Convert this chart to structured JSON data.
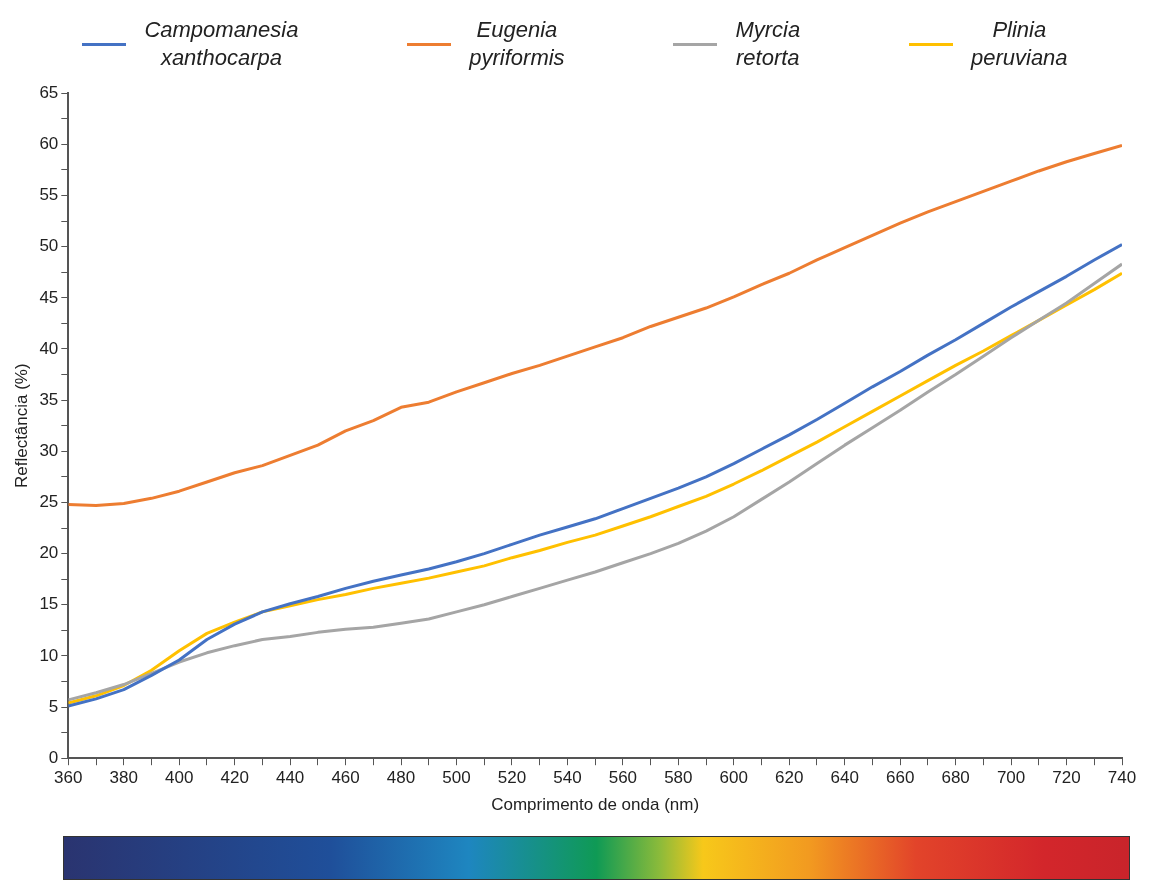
{
  "chart_data": {
    "type": "line",
    "xlabel": "Comprimento de onda (nm)",
    "ylabel": "Reflectância (%)",
    "x": [
      360,
      370,
      380,
      390,
      400,
      410,
      420,
      430,
      440,
      450,
      460,
      470,
      480,
      490,
      500,
      510,
      520,
      530,
      540,
      550,
      560,
      570,
      580,
      590,
      600,
      610,
      620,
      630,
      640,
      650,
      660,
      670,
      680,
      690,
      700,
      710,
      720,
      730,
      740
    ],
    "series": [
      {
        "name": "Campomanesia xanthocarpa",
        "color": "#4472c4",
        "values": [
          5.1,
          5.8,
          6.7,
          8.1,
          9.6,
          11.6,
          13.1,
          14.3,
          15.1,
          15.8,
          16.6,
          17.3,
          17.9,
          18.5,
          19.2,
          20.0,
          20.9,
          21.8,
          22.6,
          23.4,
          24.4,
          25.4,
          26.4,
          27.5,
          28.8,
          30.2,
          31.6,
          33.1,
          34.7,
          36.3,
          37.8,
          39.4,
          40.9,
          42.5,
          44.1,
          45.6,
          47.1,
          48.7,
          50.2
        ]
      },
      {
        "name": "Eugenia pyriformis",
        "color": "#ed7d31",
        "values": [
          24.8,
          24.7,
          24.9,
          25.4,
          26.1,
          27.0,
          27.9,
          28.6,
          29.6,
          30.6,
          32.0,
          33.0,
          34.3,
          34.8,
          35.8,
          36.7,
          37.6,
          38.4,
          39.3,
          40.2,
          41.1,
          42.2,
          43.1,
          44.0,
          45.1,
          46.3,
          47.4,
          48.7,
          49.9,
          51.1,
          52.3,
          53.4,
          54.4,
          55.4,
          56.4,
          57.4,
          58.3,
          59.1,
          59.9
        ]
      },
      {
        "name": "Myrcia retorta",
        "color": "#a5a5a5",
        "values": [
          5.7,
          6.4,
          7.2,
          8.3,
          9.4,
          10.3,
          11.0,
          11.6,
          11.9,
          12.3,
          12.6,
          12.8,
          13.2,
          13.6,
          14.3,
          15.0,
          15.8,
          16.6,
          17.4,
          18.2,
          19.1,
          20.0,
          21.0,
          22.2,
          23.6,
          25.3,
          27.0,
          28.8,
          30.6,
          32.3,
          34.0,
          35.8,
          37.5,
          39.3,
          41.1,
          42.8,
          44.5,
          46.4,
          48.3
        ]
      },
      {
        "name": "Plinia peruviana",
        "color": "#ffc000",
        "values": [
          5.4,
          6.1,
          7.1,
          8.6,
          10.5,
          12.2,
          13.3,
          14.3,
          14.9,
          15.5,
          16.0,
          16.6,
          17.1,
          17.6,
          18.2,
          18.8,
          19.6,
          20.3,
          21.1,
          21.8,
          22.7,
          23.6,
          24.6,
          25.6,
          26.8,
          28.1,
          29.5,
          30.9,
          32.4,
          33.9,
          35.4,
          36.9,
          38.4,
          39.8,
          41.3,
          42.8,
          44.3,
          45.8,
          47.4
        ]
      }
    ],
    "xlim": [
      360,
      740
    ],
    "xticks": [
      360,
      {
        "value": 370,
        "label": null
      },
      380,
      {
        "value": 390,
        "label": null
      },
      400,
      {
        "value": 410,
        "label": null
      },
      420,
      {
        "value": 430,
        "label": null
      },
      440,
      {
        "value": 450,
        "label": null
      },
      460,
      {
        "value": 470,
        "label": null
      },
      480,
      {
        "value": 490,
        "label": null
      },
      500,
      {
        "value": 510,
        "label": null
      },
      520,
      {
        "value": 530,
        "label": null
      },
      540,
      {
        "value": 550,
        "label": null
      },
      560,
      {
        "value": 570,
        "label": null
      },
      580,
      {
        "value": 590,
        "label": null
      },
      600,
      {
        "value": 610,
        "label": null
      },
      620,
      {
        "value": 630,
        "label": null
      },
      640,
      {
        "value": 650,
        "label": null
      },
      660,
      {
        "value": 670,
        "label": null
      },
      680,
      {
        "value": 690,
        "label": null
      },
      700,
      {
        "value": 710,
        "label": null
      },
      720,
      {
        "value": 730,
        "label": null
      },
      740
    ],
    "ylim": [
      0,
      65
    ],
    "yticks": [
      0,
      {
        "value": 2.5,
        "label": null
      },
      5,
      {
        "value": 7.5,
        "label": null
      },
      10,
      {
        "value": 12.5,
        "label": null
      },
      15,
      {
        "value": 17.5,
        "label": null
      },
      20,
      {
        "value": 22.5,
        "label": null
      },
      25,
      {
        "value": 27.5,
        "label": null
      },
      30,
      {
        "value": 32.5,
        "label": null
      },
      35,
      {
        "value": 37.5,
        "label": null
      },
      40,
      {
        "value": 42.5,
        "label": null
      },
      45,
      {
        "value": 47.5,
        "label": null
      },
      50,
      {
        "value": 52.5,
        "label": null
      },
      55,
      {
        "value": 57.5,
        "label": null
      },
      60,
      {
        "value": 62.5,
        "label": null
      },
      65
    ],
    "grid": false,
    "legend": "top",
    "marker": "none",
    "line_style": "solid"
  }
}
